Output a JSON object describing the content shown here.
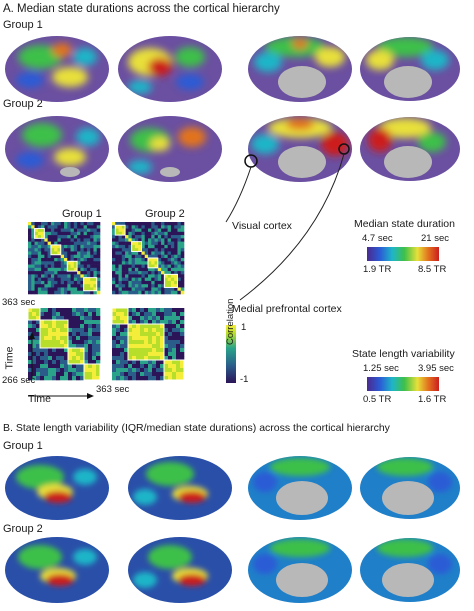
{
  "panel_a": {
    "title": "A. Median state durations across the cortical hierarchy",
    "group1_label": "Group 1",
    "group2_label": "Group 2"
  },
  "matrices": {
    "group1_label": "Group 1",
    "group2_label": "Group 2",
    "time_363_left": "363 sec",
    "time_266": "266 sec",
    "time_363_bottom": "363 sec",
    "time_axis_x": "Time",
    "time_axis_y": "Time",
    "colorbar_label": "Correlation",
    "colorbar_max": "1",
    "colorbar_min": "-1"
  },
  "annotations": {
    "visual_cortex": "Visual cortex",
    "medial_prefrontal": "Medial prefrontal cortex"
  },
  "legend_median": {
    "title": "Median state duration",
    "sec_low": "4.7 sec",
    "sec_high": "21 sec",
    "tr_low": "1.9 TR",
    "tr_high": "8.5 TR"
  },
  "legend_variability": {
    "title": "State length variability",
    "sec_low": "1.25 sec",
    "sec_high": "3.95 sec",
    "tr_low": "0.5 TR",
    "tr_high": "1.6 TR"
  },
  "panel_b": {
    "title": "B. State length variability (IQR/median state durations) across the cortical hierarchy",
    "group1_label": "Group 1",
    "group2_label": "Group 2"
  },
  "colors": {
    "brain_base": "#6b4fa0",
    "spectrum": [
      "#4b2a8f",
      "#2a5bd6",
      "#1fb5c8",
      "#3ec04a",
      "#e8e03a",
      "#e2731f",
      "#cc1f1f"
    ],
    "matrix": [
      "#2b1458",
      "#2a5d8a",
      "#2aa38a",
      "#b7de2b",
      "#f4ee3a"
    ],
    "medial_wall": "#b8b8b8"
  }
}
